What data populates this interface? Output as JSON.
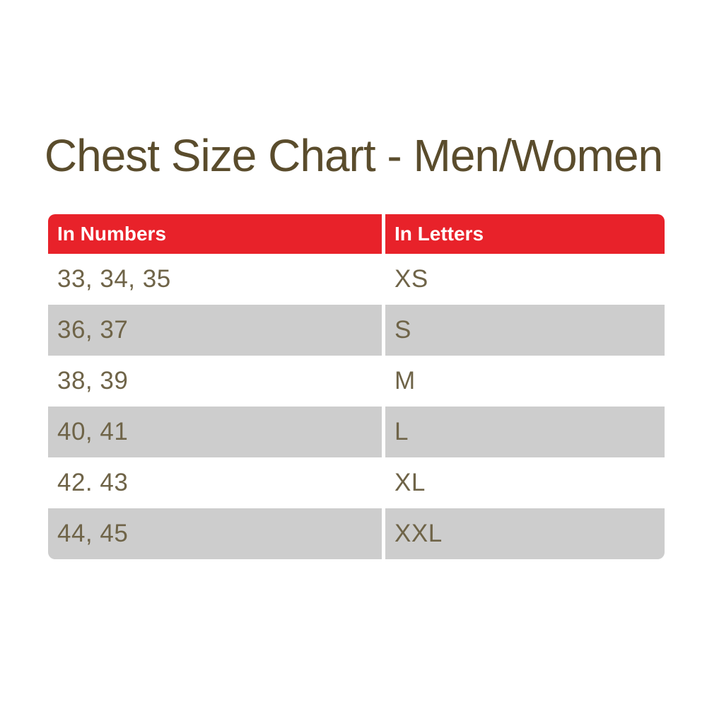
{
  "title": "Chest Size Chart - Men/Women",
  "colors": {
    "page_bg": "#ffffff",
    "header_bg": "#e8222a",
    "header_text": "#ffffff",
    "row_stripe_bg": "#cdcdcd",
    "row_bg": "#ffffff",
    "value_text": "#6f6448",
    "title_text": "#5a4c2c"
  },
  "chart_data": {
    "type": "table",
    "title": "Chest Size Chart - Men/Women",
    "columns": [
      "In Numbers",
      "In Letters"
    ],
    "rows": [
      [
        "33, 34, 35",
        "XS"
      ],
      [
        "36, 37",
        "S"
      ],
      [
        "38, 39",
        "M"
      ],
      [
        "40, 41",
        "L"
      ],
      [
        "42. 43",
        "XL"
      ],
      [
        "44, 45",
        "XXL"
      ]
    ],
    "layout_hints": {
      "header_style": "red background, bold white text, rounded top corners",
      "stripe_style": "alternating white and gray rows, rounded bottom corners on last row",
      "column_divider": "white gutter between columns"
    }
  }
}
